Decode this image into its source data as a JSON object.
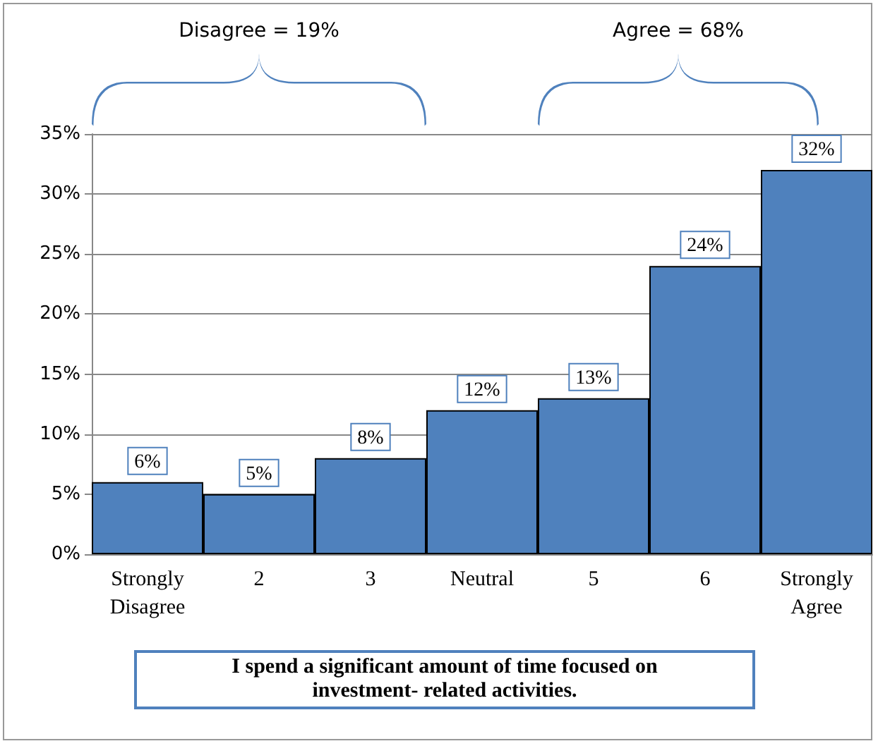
{
  "chart_data": {
    "type": "bar",
    "title": "I spend a significant amount of time focused on investment- related activities.",
    "categories": [
      "Strongly\nDisagree",
      "2",
      "3",
      "Neutral",
      "5",
      "6",
      "Strongly\nAgree"
    ],
    "values": [
      6,
      5,
      8,
      12,
      13,
      24,
      32
    ],
    "value_labels": [
      "6%",
      "5%",
      "8%",
      "12%",
      "13%",
      "24%",
      "32%"
    ],
    "color": "#4f81bd",
    "ylim": [
      0,
      35
    ],
    "yticks": [
      {
        "value": 0,
        "label": "0%"
      },
      {
        "value": 5,
        "label": "5%"
      },
      {
        "value": 10,
        "label": "10%"
      },
      {
        "value": 15,
        "label": "15%"
      },
      {
        "value": 20,
        "label": "20%"
      },
      {
        "value": 25,
        "label": "25%"
      },
      {
        "value": 30,
        "label": "30%"
      },
      {
        "value": 35,
        "label": "35%"
      }
    ],
    "grid": "y",
    "annotations": [
      "Disagree = 19%",
      "Agree = 68%"
    ]
  }
}
